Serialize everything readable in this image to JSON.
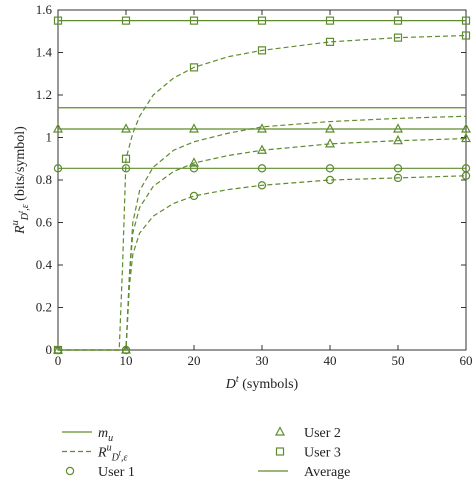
{
  "chart_data": {
    "type": "line",
    "color": "#5e8c2e",
    "xlim": [
      0,
      60
    ],
    "ylim": [
      0,
      1.6
    ],
    "xticks": [
      0,
      10,
      20,
      30,
      40,
      50,
      60
    ],
    "yticks": [
      0,
      0.2,
      0.4,
      0.6,
      0.8,
      1,
      1.2,
      1.4,
      1.6
    ],
    "x_label": [
      {
        "s": "D",
        "k": "i"
      },
      {
        "s": "t",
        "k": "sup"
      },
      {
        "s": " (symbols)",
        "k": "n"
      }
    ],
    "y_label": [
      {
        "s": "R",
        "k": "i"
      },
      {
        "s": "u",
        "k": "sup"
      },
      {
        "s": "D",
        "k": "sub"
      },
      {
        "s": "t",
        "k": "subsup"
      },
      {
        "s": ",ε",
        "k": "sub"
      },
      {
        "s": " (bits/symbol)",
        "k": "n"
      }
    ],
    "series": [
      {
        "line": "solid",
        "marker": "circle",
        "x": [
          0,
          10,
          20,
          30,
          40,
          50,
          60
        ],
        "values": [
          0.855,
          0.855,
          0.855,
          0.855,
          0.855,
          0.855,
          0.855
        ]
      },
      {
        "line": "solid",
        "marker": "triangle",
        "x": [
          0,
          10,
          20,
          30,
          40,
          50,
          60
        ],
        "values": [
          1.04,
          1.04,
          1.04,
          1.04,
          1.04,
          1.04,
          1.04
        ]
      },
      {
        "line": "solid",
        "marker": "square",
        "x": [
          0,
          10,
          20,
          30,
          40,
          50,
          60
        ],
        "values": [
          1.55,
          1.55,
          1.55,
          1.55,
          1.55,
          1.55,
          1.55
        ]
      },
      {
        "line": "solid",
        "marker": null,
        "x": [
          0,
          60
        ],
        "values": [
          1.14,
          1.14
        ]
      },
      {
        "line": "dashed",
        "marker": "circle",
        "x": [
          0,
          10,
          10.5,
          11,
          12,
          14,
          17,
          20,
          25,
          30,
          40,
          50,
          60
        ],
        "values": [
          0,
          0,
          0.3,
          0.45,
          0.55,
          0.63,
          0.69,
          0.725,
          0.755,
          0.775,
          0.8,
          0.81,
          0.82
        ]
      },
      {
        "line": "dashed",
        "marker": "triangle",
        "x": [
          0,
          10,
          10.5,
          11,
          12,
          14,
          17,
          20,
          25,
          30,
          40,
          50,
          60
        ],
        "values": [
          0,
          0,
          0.35,
          0.55,
          0.67,
          0.77,
          0.84,
          0.88,
          0.915,
          0.94,
          0.97,
          0.985,
          0.995
        ]
      },
      {
        "line": "dashed",
        "marker": "square",
        "x": [
          0,
          9,
          9.5,
          10,
          11,
          12,
          14,
          17,
          20,
          25,
          30,
          40,
          50,
          60
        ],
        "values": [
          0,
          0,
          0.4,
          0.9,
          1.02,
          1.1,
          1.2,
          1.28,
          1.33,
          1.38,
          1.41,
          1.45,
          1.47,
          1.48
        ]
      },
      {
        "line": "dashed",
        "marker": null,
        "x": [
          0,
          10,
          10.5,
          11,
          12,
          14,
          17,
          20,
          25,
          30,
          40,
          50,
          60
        ],
        "values": [
          0,
          0,
          0.35,
          0.6,
          0.75,
          0.86,
          0.94,
          0.98,
          1.02,
          1.05,
          1.075,
          1.09,
          1.1
        ]
      }
    ],
    "legend_ncol": 2,
    "legend": [
      {
        "line": "solid",
        "marker": null,
        "parts": [
          {
            "s": "m",
            "k": "i"
          },
          {
            "s": "u",
            "k": "sub"
          }
        ]
      },
      {
        "line": "dashed",
        "marker": null,
        "parts": [
          {
            "s": "R",
            "k": "i"
          },
          {
            "s": "u",
            "k": "sup"
          },
          {
            "s": "D",
            "k": "sub"
          },
          {
            "s": "t",
            "k": "subsup"
          },
          {
            "s": ",ε",
            "k": "sub"
          }
        ]
      },
      {
        "line": null,
        "marker": "circle",
        "parts": [
          {
            "s": "User 1",
            "k": "n"
          }
        ]
      },
      {
        "line": null,
        "marker": "triangle",
        "parts": [
          {
            "s": "User 2",
            "k": "n"
          }
        ]
      },
      {
        "line": null,
        "marker": "square",
        "parts": [
          {
            "s": "User 3",
            "k": "n"
          }
        ]
      },
      {
        "line": "solid",
        "marker": null,
        "parts": [
          {
            "s": "Average",
            "k": "n"
          }
        ]
      }
    ]
  }
}
